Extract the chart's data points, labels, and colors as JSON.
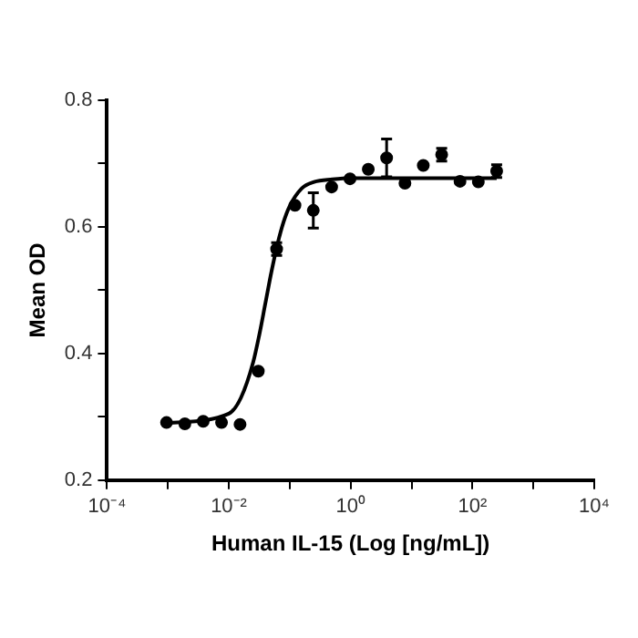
{
  "chart_data": {
    "type": "scatter",
    "xlabel": "Human IL-15 (Log [ng/mL])",
    "ylabel": "Mean OD",
    "log": "x",
    "grid": false,
    "legend": false,
    "xlim": [
      0.0001,
      10000
    ],
    "xticks": [
      {
        "value": 0.0001,
        "label": "10⁻⁴"
      },
      {
        "value": 0.001,
        "label": null
      },
      {
        "value": 0.01,
        "label": "10⁻²"
      },
      {
        "value": 0.1,
        "label": null
      },
      {
        "value": 1,
        "label": "10⁰"
      },
      {
        "value": 10,
        "label": null
      },
      {
        "value": 100,
        "label": "10²"
      },
      {
        "value": 1000,
        "label": null
      },
      {
        "value": 10000,
        "label": "10⁴"
      }
    ],
    "ylim": [
      0.2,
      0.8
    ],
    "yticks": [
      0.2,
      {
        "value": 0.3,
        "label": null
      },
      0.4,
      {
        "value": 0.5,
        "label": null
      },
      0.6,
      {
        "value": 0.7,
        "label": null
      },
      0.8
    ],
    "series": [
      {
        "color": "#000000",
        "marker": "circle",
        "x": [
          0.00095,
          0.0019,
          0.0038,
          0.0076,
          0.0153,
          0.0305,
          0.061,
          0.122,
          0.244,
          0.488,
          0.977,
          1.95,
          3.9,
          7.8,
          15.6,
          31.25,
          62.5,
          125,
          250
        ],
        "values": [
          0.291,
          0.289,
          0.293,
          0.291,
          0.288,
          0.372,
          0.565,
          0.634,
          0.626,
          0.663,
          0.676,
          0.691,
          0.709,
          0.669,
          0.697,
          0.714,
          0.672,
          0.671,
          0.688
        ],
        "errors": [
          null,
          null,
          null,
          null,
          null,
          null,
          0.01,
          null,
          0.028,
          null,
          null,
          null,
          0.03,
          null,
          null,
          0.01,
          null,
          null,
          0.01
        ]
      },
      {
        "type": "line",
        "color": "#000000",
        "marker": "none",
        "x": [
          0.00095,
          0.01,
          0.0158,
          0.0251,
          0.0316,
          0.0398,
          0.0501,
          0.0631,
          0.0794,
          0.1,
          0.158,
          0.251,
          0.5,
          1,
          250
        ],
        "values": [
          0.29,
          0.305,
          0.33,
          0.386,
          0.429,
          0.479,
          0.529,
          0.573,
          0.608,
          0.633,
          0.661,
          0.671,
          0.675,
          0.677,
          0.677
        ]
      }
    ]
  }
}
